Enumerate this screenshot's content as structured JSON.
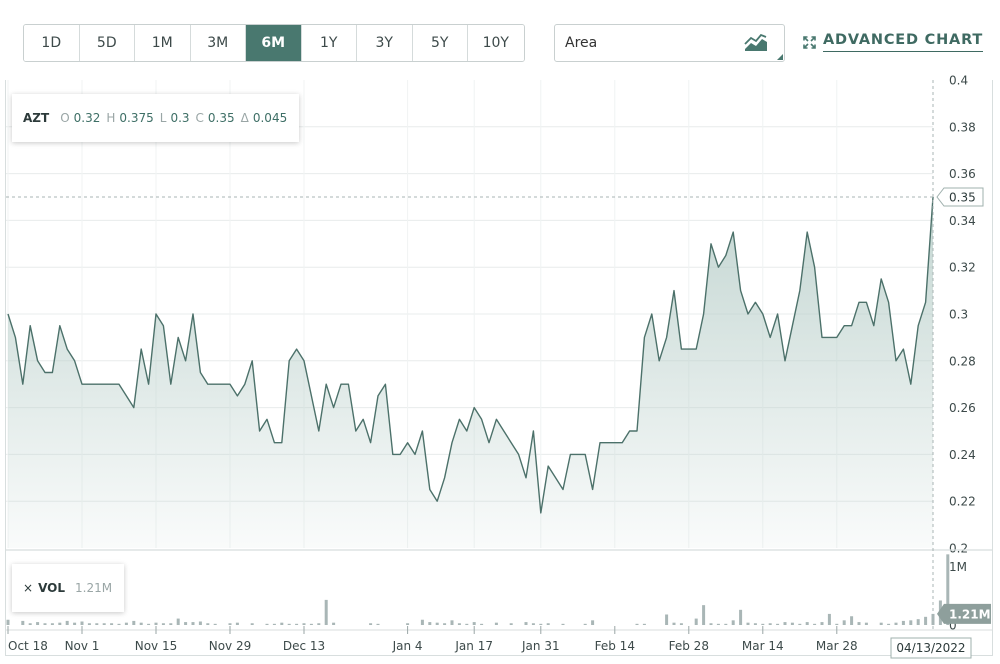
{
  "toolbar": {
    "ranges": [
      "1D",
      "5D",
      "1M",
      "3M",
      "6M",
      "1Y",
      "3Y",
      "5Y",
      "10Y"
    ],
    "active_range": "6M",
    "chart_type": "Area",
    "advanced_label": "ADVANCED CHART"
  },
  "ohlc": {
    "symbol": "AZT",
    "o_label": "O",
    "o": "0.32",
    "h_label": "H",
    "h": "0.375",
    "l_label": "L",
    "l": "0.3",
    "c_label": "C",
    "c": "0.35",
    "d_label": "Δ",
    "d": "0.045"
  },
  "volume_box": {
    "close": "×",
    "label": "VOL",
    "value": "1.21M"
  },
  "colors": {
    "accent": "#49786f",
    "line": "#4c716a",
    "area_top": "#b9cfca",
    "volume_bar": "#a9b6b6",
    "tag_bg": "#8e9f9c"
  },
  "chart_data": {
    "type": "area",
    "price": {
      "values": [
        0.3,
        0.29,
        0.27,
        0.295,
        0.28,
        0.275,
        0.275,
        0.295,
        0.285,
        0.28,
        0.27,
        0.27,
        0.27,
        0.27,
        0.27,
        0.27,
        0.265,
        0.26,
        0.285,
        0.27,
        0.3,
        0.295,
        0.27,
        0.29,
        0.28,
        0.3,
        0.275,
        0.27,
        0.27,
        0.27,
        0.27,
        0.265,
        0.27,
        0.28,
        0.25,
        0.255,
        0.245,
        0.245,
        0.28,
        0.285,
        0.28,
        0.265,
        0.25,
        0.27,
        0.26,
        0.27,
        0.27,
        0.25,
        0.255,
        0.245,
        0.265,
        0.27,
        0.24,
        0.24,
        0.245,
        0.24,
        0.25,
        0.225,
        0.22,
        0.23,
        0.245,
        0.255,
        0.25,
        0.26,
        0.255,
        0.245,
        0.255,
        0.25,
        0.245,
        0.24,
        0.23,
        0.25,
        0.215,
        0.235,
        0.23,
        0.225,
        0.24,
        0.24,
        0.24,
        0.225,
        0.245,
        0.245,
        0.245,
        0.245,
        0.25,
        0.25,
        0.29,
        0.3,
        0.28,
        0.29,
        0.31,
        0.285,
        0.285,
        0.285,
        0.3,
        0.33,
        0.32,
        0.325,
        0.335,
        0.31,
        0.3,
        0.305,
        0.3,
        0.29,
        0.3,
        0.28,
        0.295,
        0.31,
        0.335,
        0.32,
        0.29,
        0.29,
        0.29,
        0.295,
        0.295,
        0.305,
        0.305,
        0.295,
        0.315,
        0.305,
        0.28,
        0.285,
        0.27,
        0.295,
        0.305,
        0.35
      ],
      "y_ticks": [
        0.2,
        0.22,
        0.24,
        0.26,
        0.28,
        0.3,
        0.32,
        0.34,
        0.36,
        0.38,
        0.4
      ],
      "y_tick_labels": [
        "0.2",
        "0.22",
        "0.24",
        "0.26",
        "0.28",
        "0.3",
        "0.32",
        "0.34",
        "0.36",
        "0.38",
        "0.4"
      ],
      "ylim": [
        0.2,
        0.4
      ],
      "last_value_label": "0.35"
    },
    "volume": {
      "values": [
        0.09,
        0.0,
        0.07,
        0.03,
        0.05,
        0.03,
        0.03,
        0.04,
        0.07,
        0.04,
        0.06,
        0.03,
        0.03,
        0.03,
        0.03,
        0.02,
        0.04,
        0.07,
        0.04,
        0.02,
        0.04,
        0.03,
        0.03,
        0.11,
        0.05,
        0.05,
        0.06,
        0.03,
        0.02,
        0.0,
        0.03,
        0.04,
        0.0,
        0.03,
        0.0,
        0.02,
        0.02,
        0.04,
        0.02,
        0.02,
        0.03,
        0.02,
        0.03,
        0.43,
        0.04,
        0.0,
        0.0,
        0.0,
        0.0,
        0.03,
        0.02,
        0.0,
        0.0,
        0.0,
        0.03,
        0.0,
        0.09,
        0.05,
        0.04,
        0.03,
        0.08,
        0.03,
        0.02,
        0.05,
        0.02,
        0.0,
        0.04,
        0.0,
        0.03,
        0.0,
        0.05,
        0.03,
        0.02,
        0.03,
        0.0,
        0.02,
        0.0,
        0.0,
        0.02,
        0.08,
        0.0,
        0.0,
        0.0,
        0.0,
        0.0,
        0.02,
        0.02,
        0.0,
        0.0,
        0.18,
        0.04,
        0.03,
        0.0,
        0.11,
        0.34,
        0.03,
        0.02,
        0.02,
        0.08,
        0.26,
        0.04,
        0.03,
        0.02,
        0.03,
        0.02,
        0.05,
        0.04,
        0.02,
        0.05,
        0.02,
        0.05,
        0.19,
        0.02,
        0.08,
        0.15,
        0.05,
        0.04,
        0.0,
        0.04,
        0.02,
        0.04,
        0.07,
        0.08,
        0.1,
        0.14,
        0.19,
        0.42,
        1.21
      ],
      "y_ticks": [
        0,
        1
      ],
      "y_tick_labels": [
        "0",
        "1M"
      ],
      "ylim": [
        0,
        1.25
      ],
      "last_value_label": "1.21M"
    },
    "x_ticks": [
      {
        "label": "Oct 18",
        "index": 0
      },
      {
        "label": "Nov 1",
        "index": 10
      },
      {
        "label": "Nov 15",
        "index": 20
      },
      {
        "label": "Nov 29",
        "index": 30
      },
      {
        "label": "Dec 13",
        "index": 40
      },
      {
        "label": "Jan 4",
        "index": 54
      },
      {
        "label": "Jan 17",
        "index": 63
      },
      {
        "label": "Jan 31",
        "index": 72
      },
      {
        "label": "Feb 14",
        "index": 82
      },
      {
        "label": "Feb 28",
        "index": 92
      },
      {
        "label": "Mar 14",
        "index": 102
      },
      {
        "label": "Mar 28",
        "index": 112
      }
    ],
    "last_date_label": "04/13/2022",
    "grid": true
  }
}
